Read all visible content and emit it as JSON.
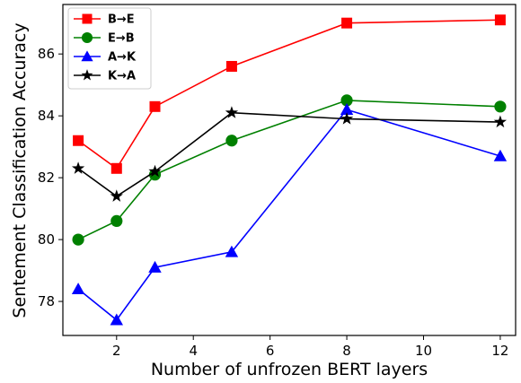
{
  "chart_data": {
    "type": "line",
    "xlabel": "Number of unfrozen BERT layers",
    "ylabel": "Sentement Classification Accuracy",
    "xlim": [
      0.6,
      12.4
    ],
    "ylim": [
      76.9,
      87.6
    ],
    "xticks": [
      2,
      4,
      6,
      8,
      10,
      12
    ],
    "yticks": [
      78,
      80,
      82,
      84,
      86
    ],
    "x": [
      1,
      2,
      3,
      5,
      8,
      12
    ],
    "grid": false,
    "legend_position": "top-left",
    "series": [
      {
        "name": "B→E",
        "color": "#ff0000",
        "marker": "square",
        "values": [
          83.2,
          82.3,
          84.3,
          85.6,
          87.0,
          87.1
        ]
      },
      {
        "name": "E→B",
        "color": "#008000",
        "marker": "circle",
        "values": [
          80.0,
          80.6,
          82.1,
          83.2,
          84.5,
          84.3
        ]
      },
      {
        "name": "A→K",
        "color": "#0000ff",
        "marker": "triangle",
        "values": [
          78.4,
          77.4,
          79.1,
          79.6,
          84.2,
          82.7
        ]
      },
      {
        "name": "K→A",
        "color": "#000000",
        "marker": "star",
        "values": [
          82.3,
          81.4,
          82.2,
          84.1,
          83.9,
          83.8
        ]
      }
    ]
  }
}
